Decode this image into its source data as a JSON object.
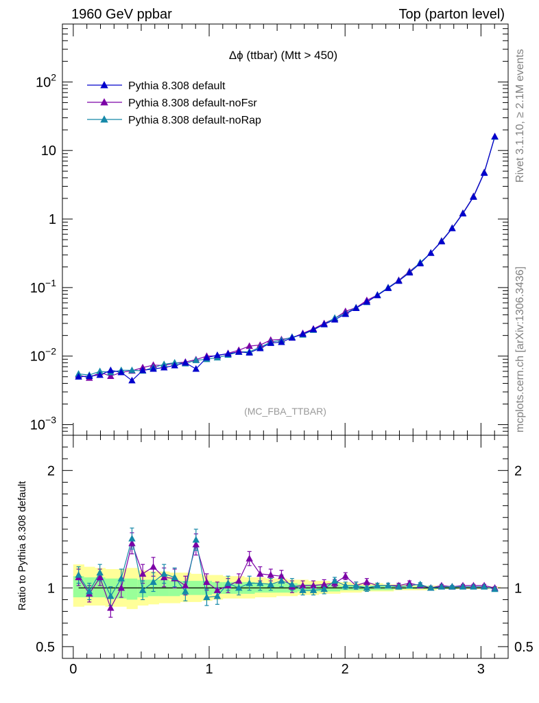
{
  "header": {
    "left": "1960 GeV ppbar",
    "right": "Top (parton level)"
  },
  "side_labels": {
    "rivet": "Rivet 3.1.10, ≥ 2.1M events",
    "mcplots": "mcplots.cern.ch [arXiv:1306.3436]"
  },
  "colors": {
    "pythia_default": "#0000cc",
    "pythia_nofsr": "#7b00a6",
    "pythia_norap": "#1588a8",
    "band_outer": "#ffff99",
    "band_inner": "#99ff99"
  },
  "chart_data": [
    {
      "type": "line",
      "title": "Δϕ (ttbar) (Mtt > 450)",
      "analysis_label": "(MC_FBA_TTBAR)",
      "xlabel": "",
      "ylabel": "",
      "xlim": [
        -0.08,
        3.2
      ],
      "ylim": [
        0.0007,
        700
      ],
      "yscale": "log",
      "y_ticks": [
        {
          "value": 0.001,
          "base": "10",
          "exp": "−3"
        },
        {
          "value": 0.01,
          "base": "10",
          "exp": "−2"
        },
        {
          "value": 0.1,
          "base": "10",
          "exp": "−1"
        },
        {
          "value": 1,
          "base": "1",
          "exp": ""
        },
        {
          "value": 10,
          "base": "10",
          "exp": ""
        },
        {
          "value": 100,
          "base": "10",
          "exp": "2"
        }
      ],
      "legend_position": "top-left",
      "x": [
        0.039,
        0.118,
        0.196,
        0.275,
        0.353,
        0.432,
        0.511,
        0.589,
        0.668,
        0.746,
        0.825,
        0.903,
        0.982,
        1.06,
        1.139,
        1.218,
        1.296,
        1.375,
        1.453,
        1.532,
        1.61,
        1.689,
        1.767,
        1.846,
        1.924,
        2.003,
        2.081,
        2.16,
        2.238,
        2.317,
        2.395,
        2.474,
        2.553,
        2.631,
        2.71,
        2.788,
        2.867,
        2.945,
        3.024,
        3.102
      ],
      "series": [
        {
          "name": "Pythia 8.308 default",
          "color": "#0000cc",
          "values": [
            0.005,
            0.0051,
            0.0053,
            0.0062,
            0.0058,
            0.0044,
            0.0062,
            0.0065,
            0.0068,
            0.0073,
            0.008,
            0.0065,
            0.0095,
            0.0103,
            0.0108,
            0.0115,
            0.0112,
            0.013,
            0.0155,
            0.016,
            0.0185,
            0.021,
            0.0245,
            0.029,
            0.034,
            0.041,
            0.05,
            0.062,
            0.077,
            0.098,
            0.125,
            0.165,
            0.225,
            0.32,
            0.47,
            0.73,
            1.2,
            2.1,
            4.7,
            16.0
          ]
        },
        {
          "name": "Pythia 8.308 default-noFsr",
          "color": "#7b00a6",
          "values": [
            0.0053,
            0.0048,
            0.0058,
            0.0051,
            0.0058,
            0.0061,
            0.0068,
            0.0074,
            0.0073,
            0.0079,
            0.0082,
            0.0089,
            0.01,
            0.0101,
            0.011,
            0.0122,
            0.014,
            0.0145,
            0.0172,
            0.0175,
            0.0185,
            0.0215,
            0.025,
            0.03,
            0.0355,
            0.045,
            0.051,
            0.065,
            0.078,
            0.1,
            0.128,
            0.172,
            0.23,
            0.32,
            0.48,
            0.74,
            1.22,
            2.15,
            4.8,
            16.0
          ]
        },
        {
          "name": "Pythia 8.308 default-noRap",
          "color": "#1588a8",
          "values": [
            0.0055,
            0.0053,
            0.006,
            0.0058,
            0.0062,
            0.0062,
            0.0061,
            0.0068,
            0.0076,
            0.008,
            0.0078,
            0.0087,
            0.009,
            0.0095,
            0.0104,
            0.0115,
            0.0116,
            0.0135,
            0.016,
            0.017,
            0.019,
            0.0205,
            0.024,
            0.029,
            0.036,
            0.042,
            0.051,
            0.061,
            0.078,
            0.1,
            0.126,
            0.168,
            0.232,
            0.32,
            0.475,
            0.735,
            1.21,
            2.12,
            4.75,
            15.8
          ]
        }
      ]
    },
    {
      "type": "line",
      "title": "",
      "xlabel": "",
      "ylabel": "Ratio to Pythia 8.308 default",
      "xlim": [
        -0.08,
        3.2
      ],
      "ylim": [
        0.4,
        2.3
      ],
      "x_ticks": [
        0,
        1,
        2,
        3
      ],
      "y_ticks": [
        0.5,
        1,
        2
      ],
      "x": [
        0.039,
        0.118,
        0.196,
        0.275,
        0.353,
        0.432,
        0.511,
        0.589,
        0.668,
        0.746,
        0.825,
        0.903,
        0.982,
        1.06,
        1.139,
        1.218,
        1.296,
        1.375,
        1.453,
        1.532,
        1.61,
        1.689,
        1.767,
        1.846,
        1.924,
        2.003,
        2.081,
        2.16,
        2.238,
        2.317,
        2.395,
        2.474,
        2.553,
        2.631,
        2.71,
        2.788,
        2.867,
        2.945,
        3.024,
        3.102
      ],
      "band_outer": {
        "lo": [
          0.84,
          0.85,
          0.85,
          0.84,
          0.84,
          0.82,
          0.85,
          0.86,
          0.87,
          0.87,
          0.88,
          0.88,
          0.89,
          0.9,
          0.91,
          0.91,
          0.91,
          0.92,
          0.92,
          0.93,
          0.93,
          0.94,
          0.94,
          0.95,
          0.95,
          0.96,
          0.96,
          0.97,
          0.97,
          0.97,
          0.98,
          0.98,
          0.98,
          0.98,
          0.99,
          0.99,
          0.99,
          0.99,
          0.99,
          1.0
        ],
        "hi": [
          1.2,
          1.18,
          1.17,
          1.16,
          1.16,
          1.17,
          1.15,
          1.14,
          1.14,
          1.13,
          1.13,
          1.12,
          1.11,
          1.11,
          1.1,
          1.1,
          1.09,
          1.09,
          1.08,
          1.08,
          1.07,
          1.07,
          1.06,
          1.06,
          1.05,
          1.05,
          1.04,
          1.04,
          1.04,
          1.03,
          1.03,
          1.03,
          1.02,
          1.02,
          1.02,
          1.01,
          1.01,
          1.01,
          1.01,
          1.01
        ]
      },
      "band_inner": {
        "lo": [
          0.92,
          0.92,
          0.92,
          0.91,
          0.91,
          0.9,
          0.92,
          0.93,
          0.93,
          0.93,
          0.94,
          0.94,
          0.94,
          0.95,
          0.95,
          0.95,
          0.95,
          0.96,
          0.96,
          0.96,
          0.96,
          0.97,
          0.97,
          0.97,
          0.97,
          0.98,
          0.98,
          0.98,
          0.98,
          0.98,
          0.99,
          0.99,
          0.99,
          0.99,
          0.99,
          0.99,
          0.995,
          0.995,
          0.995,
          1.0
        ],
        "hi": [
          1.1,
          1.09,
          1.09,
          1.08,
          1.08,
          1.08,
          1.07,
          1.07,
          1.07,
          1.06,
          1.06,
          1.06,
          1.06,
          1.05,
          1.05,
          1.05,
          1.05,
          1.04,
          1.04,
          1.04,
          1.04,
          1.03,
          1.03,
          1.03,
          1.03,
          1.02,
          1.02,
          1.02,
          1.02,
          1.02,
          1.01,
          1.01,
          1.01,
          1.01,
          1.01,
          1.01,
          1.005,
          1.005,
          1.005,
          1.0
        ]
      },
      "series": [
        {
          "name": "Pythia 8.308 default-noFsr",
          "color": "#7b00a6",
          "values": [
            1.09,
            0.95,
            1.09,
            0.83,
            1.0,
            1.38,
            1.12,
            1.18,
            1.09,
            1.08,
            1.02,
            1.37,
            1.05,
            0.98,
            1.02,
            1.06,
            1.25,
            1.12,
            1.11,
            1.1,
            1.01,
            1.02,
            1.02,
            1.03,
            1.04,
            1.1,
            1.02,
            1.05,
            1.02,
            1.02,
            1.02,
            1.04,
            1.02,
            1.0,
            1.02,
            1.01,
            1.02,
            1.02,
            1.02,
            1.0
          ]
        },
        {
          "name": "Pythia 8.308 default-noRap",
          "color": "#1588a8",
          "values": [
            1.11,
            0.97,
            1.13,
            0.93,
            1.08,
            1.42,
            0.98,
            1.05,
            1.12,
            1.09,
            0.97,
            1.41,
            0.92,
            0.93,
            1.04,
            1.0,
            1.04,
            1.04,
            1.03,
            1.06,
            1.03,
            0.98,
            0.98,
            0.99,
            1.06,
            1.02,
            1.02,
            1.0,
            1.02,
            1.02,
            1.01,
            1.02,
            1.03,
            1.0,
            1.01,
            1.01,
            1.01,
            1.01,
            1.01,
            0.99
          ]
        }
      ],
      "errors": [
        0.07,
        0.07,
        0.07,
        0.08,
        0.08,
        0.09,
        0.08,
        0.08,
        0.08,
        0.08,
        0.08,
        0.09,
        0.07,
        0.07,
        0.06,
        0.06,
        0.06,
        0.06,
        0.05,
        0.05,
        0.05,
        0.04,
        0.04,
        0.04,
        0.03,
        0.03,
        0.03,
        0.03,
        0.02,
        0.02,
        0.02,
        0.02,
        0.015,
        0.015,
        0.01,
        0.01,
        0.01,
        0.01,
        0.01,
        0.01
      ]
    }
  ]
}
